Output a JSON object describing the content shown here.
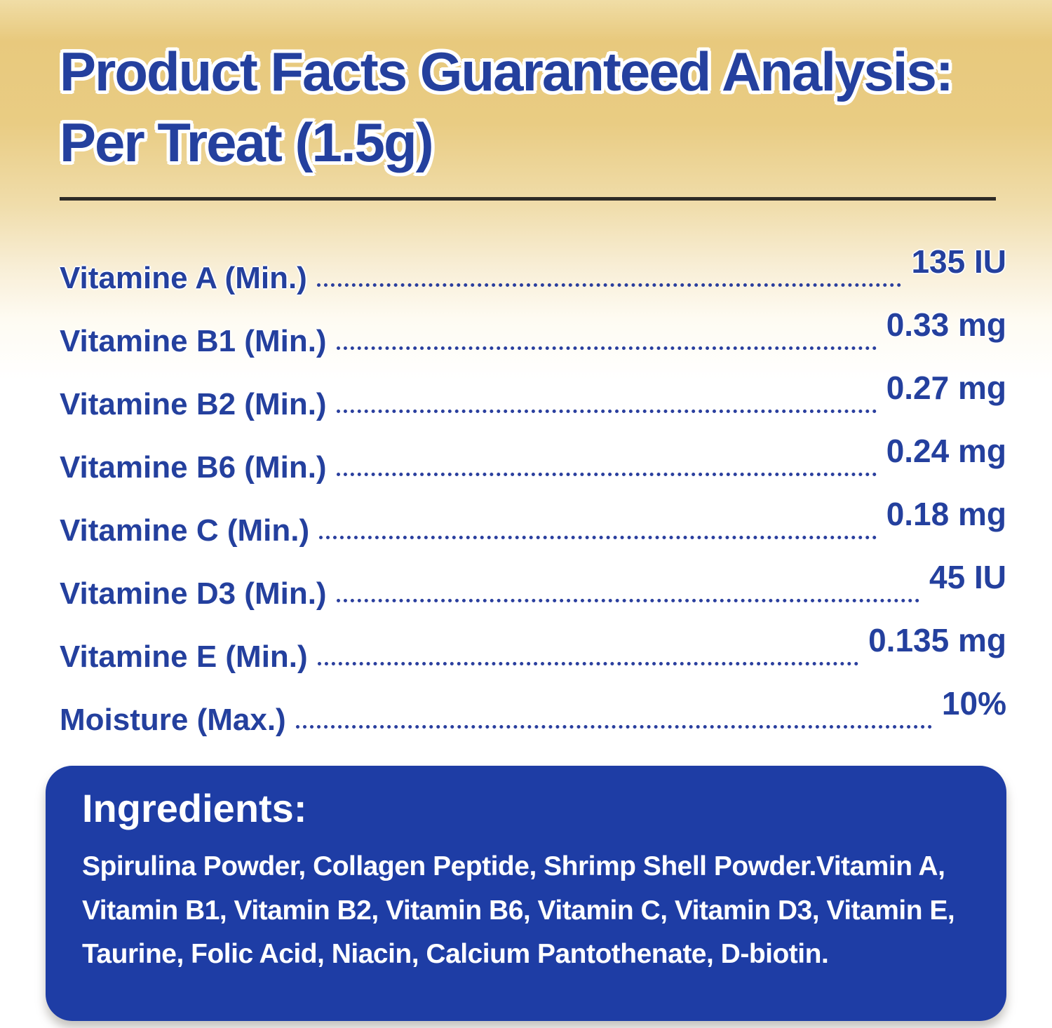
{
  "header": {
    "title_line1": "Product Facts Guaranteed Analysis:",
    "title_line2": "Per Treat (1.5g)"
  },
  "analysis": {
    "rows": [
      {
        "label": "Vitamine A (Min.)",
        "value": "135 IU"
      },
      {
        "label": "Vitamine B1 (Min.)",
        "value": "0.33 mg"
      },
      {
        "label": "Vitamine B2 (Min.)",
        "value": "0.27 mg"
      },
      {
        "label": "Vitamine B6 (Min.)",
        "value": "0.24 mg"
      },
      {
        "label": "Vitamine C (Min.)",
        "value": "0.18 mg"
      },
      {
        "label": "Vitamine D3 (Min.)",
        "value": "45 IU"
      },
      {
        "label": "Vitamine E (Min.)",
        "value": "0.135 mg"
      },
      {
        "label": "Moisture (Max.)",
        "value": "10%"
      }
    ]
  },
  "ingredients": {
    "heading": "Ingredients:",
    "text": "Spirulina Powder, Collagen Peptide, Shrimp Shell Powder.Vitamin A, Vitamin B1, Vitamin B2, Vitamin B6, Vitamin C, Vitamin D3, Vitamin E, Taurine, Folic Acid, Niacin, Calcium Pantothenate, D-biotin."
  },
  "colors": {
    "accent_blue_text": "#24409e",
    "ingredients_box_blue": "#1e3da5",
    "gold_gradient_top": "#e8c97d",
    "divider_dark": "#2e2b26",
    "ingredients_text_white": "#ffffff"
  }
}
